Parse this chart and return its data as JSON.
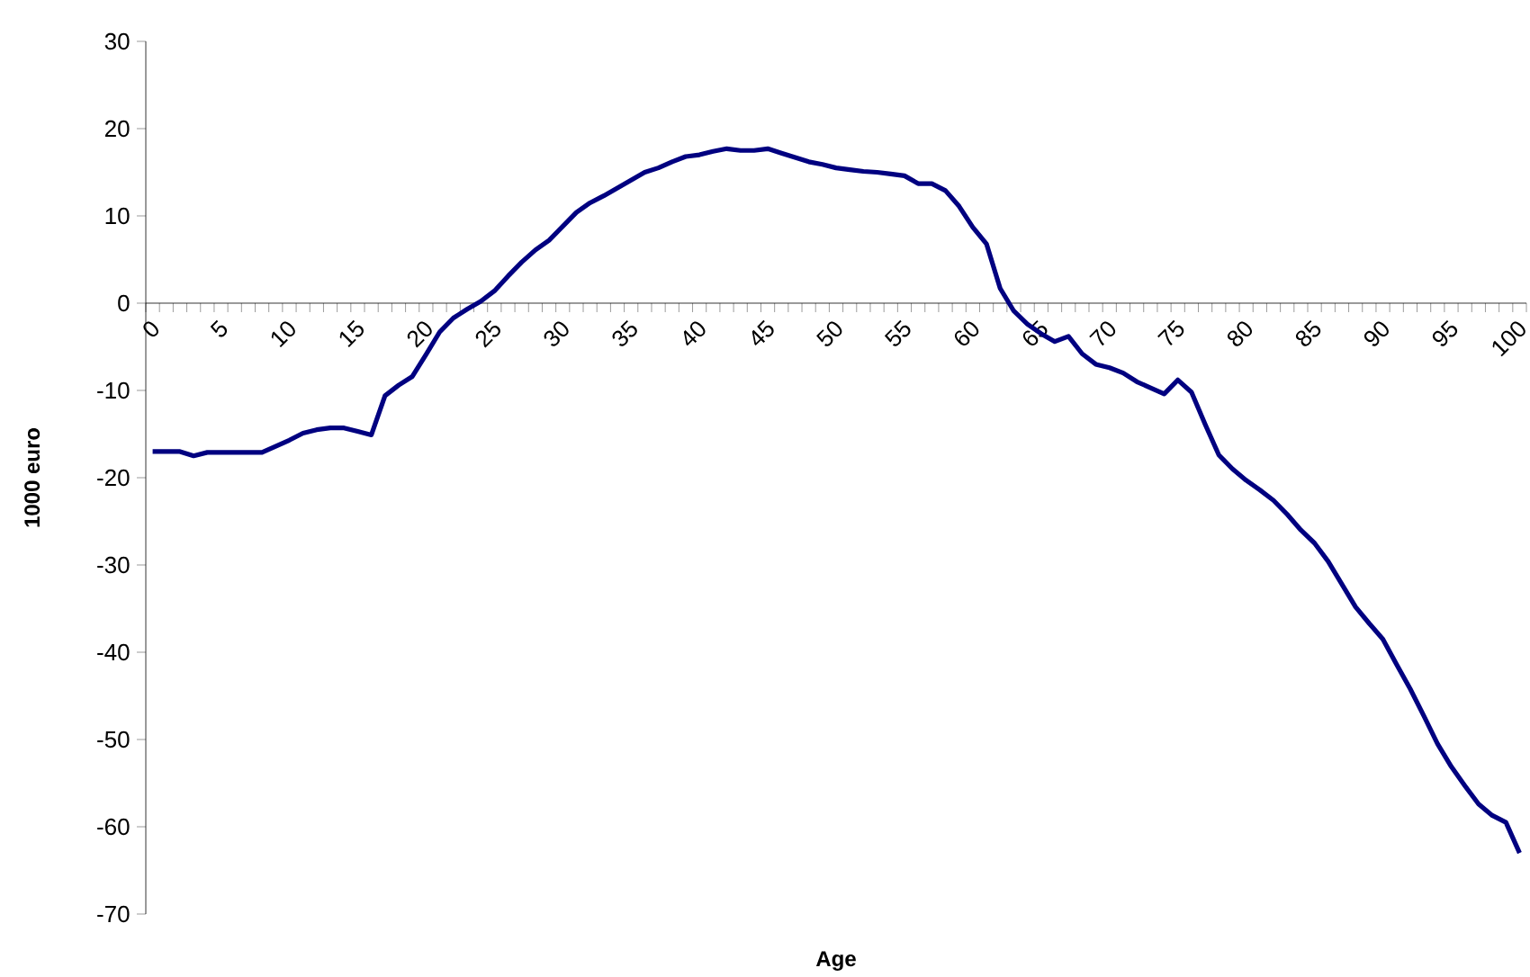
{
  "chart_data": {
    "type": "line",
    "xlabel": "Age",
    "ylabel": "1000 euro",
    "categories": [
      "0",
      null,
      null,
      null,
      null,
      "5",
      null,
      null,
      null,
      null,
      "10",
      null,
      null,
      null,
      null,
      "15",
      null,
      null,
      null,
      null,
      "20",
      null,
      null,
      null,
      null,
      "25",
      null,
      null,
      null,
      null,
      "30",
      null,
      null,
      null,
      null,
      "35",
      null,
      null,
      null,
      null,
      "40",
      null,
      null,
      null,
      null,
      "45",
      null,
      null,
      null,
      null,
      "50",
      null,
      null,
      null,
      null,
      "55",
      null,
      null,
      null,
      null,
      "60",
      null,
      null,
      null,
      null,
      "65",
      null,
      null,
      null,
      null,
      "70",
      null,
      null,
      null,
      null,
      "75",
      null,
      null,
      null,
      null,
      "80",
      null,
      null,
      null,
      null,
      "85",
      null,
      null,
      null,
      null,
      "90",
      null,
      null,
      null,
      null,
      "95",
      null,
      null,
      null,
      null,
      "100"
    ],
    "series": [
      {
        "color": "#000080",
        "values": [
          -17,
          -17,
          -17,
          -17.5,
          -17.1,
          -17.1,
          -17.1,
          -17.1,
          -17.1,
          -16.4,
          -15.7,
          -14.9,
          -14.5,
          -14.3,
          -14.3,
          -14.7,
          -15.1,
          -10.6,
          -9.4,
          -8.4,
          -5.9,
          -3.3,
          -1.7,
          -0.7,
          0.2,
          1.4,
          3.1,
          4.7,
          6.1,
          7.2,
          8.8,
          10.4,
          11.5,
          12.3,
          13.2,
          14.1,
          15.0,
          15.5,
          16.2,
          16.8,
          17.0,
          17.4,
          17.7,
          17.5,
          17.5,
          17.7,
          17.2,
          16.7,
          16.2,
          15.9,
          15.5,
          15.3,
          15.1,
          15.0,
          14.8,
          14.6,
          13.7,
          13.7,
          12.9,
          11.1,
          8.7,
          6.8,
          1.7,
          -0.9,
          -2.4,
          -3.5,
          -4.4,
          -3.8,
          -5.8,
          -7.0,
          -7.4,
          -8.0,
          -9.0,
          -9.7,
          -10.4,
          -8.8,
          -10.2,
          -13.9,
          -17.4,
          -19.0,
          -20.3,
          -21.4,
          -22.6,
          -24.2,
          -26.0,
          -27.5,
          -29.6,
          -32.2,
          -34.8,
          -36.7,
          -38.5,
          -41.4,
          -44.2,
          -47.3,
          -50.5,
          -53.1,
          -55.3,
          -57.4,
          -58.7,
          -59.5,
          -63.0
        ]
      }
    ],
    "ylim": [
      -70,
      30
    ],
    "yticks": [
      -70,
      -60,
      -50,
      -40,
      -30,
      -20,
      -10,
      0,
      10,
      20,
      30
    ],
    "grid": false,
    "marker": "none",
    "line_style": "solid"
  }
}
